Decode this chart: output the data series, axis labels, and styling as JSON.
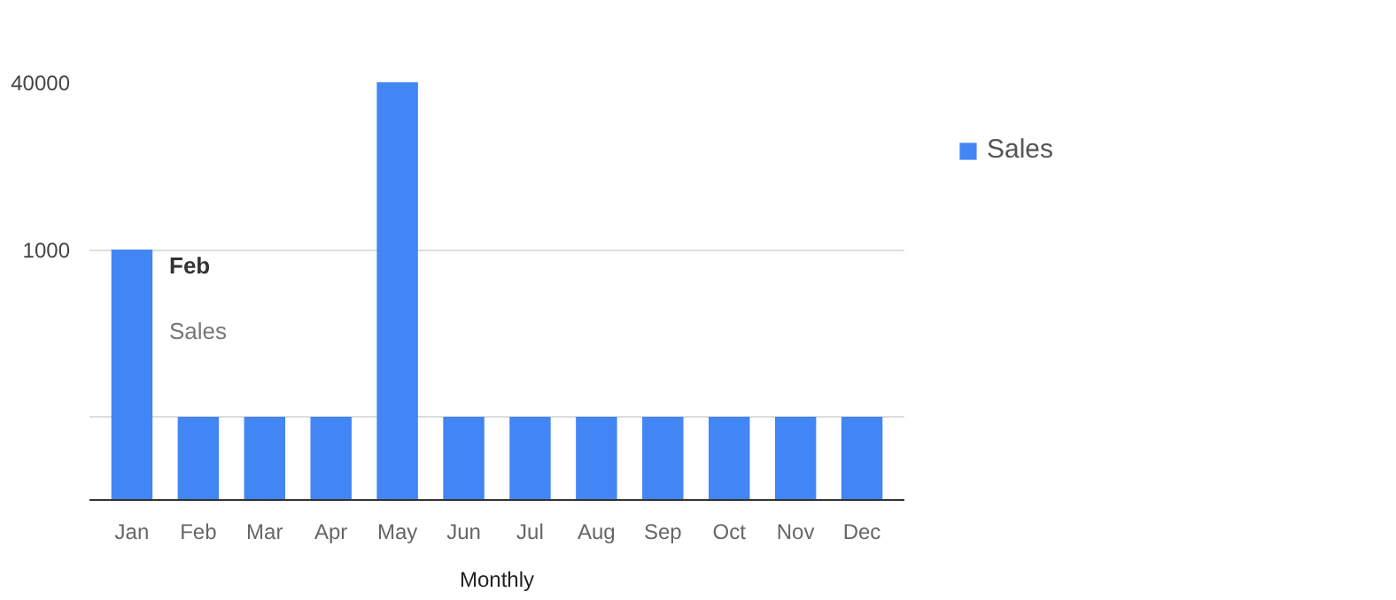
{
  "chart_data": {
    "type": "bar",
    "xlabel": "Monthly",
    "log": "y",
    "categories": [
      "Jan",
      "Feb",
      "Mar",
      "Apr",
      "May",
      "Jun",
      "Jul",
      "Aug",
      "Sep",
      "Oct",
      "Nov",
      "Dec"
    ],
    "series": [
      {
        "name": "Sales",
        "color": "#4285f4",
        "values": [
          1000,
          25,
          25,
          25,
          40000,
          25,
          25,
          25,
          25,
          25,
          25,
          25
        ]
      }
    ],
    "ylim": [
      4,
      40000
    ],
    "yticks": [
      {
        "value": 25,
        "label": null
      },
      1000,
      40000
    ],
    "grid": "y",
    "legend": "top right",
    "annotations": [
      "Feb",
      "Sales"
    ]
  }
}
